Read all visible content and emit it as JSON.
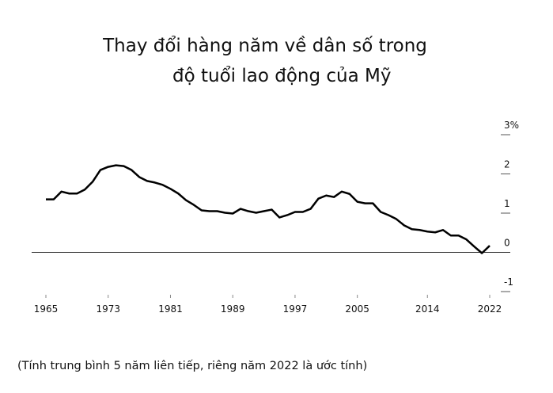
{
  "chart_data": {
    "type": "line",
    "title": [
      "Thay đổi hàng năm về dân số trong",
      "độ tuổi lao động của Mỹ"
    ],
    "note": "(Tính trung bình 5 năm liên tiếp, riêng năm 2022 là ước tính)",
    "x": [
      1965,
      1966,
      1967,
      1968,
      1969,
      1970,
      1971,
      1972,
      1973,
      1974,
      1975,
      1976,
      1977,
      1978,
      1979,
      1980,
      1981,
      1982,
      1983,
      1984,
      1985,
      1986,
      1987,
      1988,
      1989,
      1990,
      1991,
      1992,
      1993,
      1994,
      1995,
      1996,
      1997,
      1998,
      1999,
      2000,
      2001,
      2002,
      2003,
      2004,
      2005,
      2006,
      2007,
      2008,
      2009,
      2010,
      2011,
      2012,
      2013,
      2014,
      2015,
      2016,
      2017,
      2018,
      2019,
      2020,
      2021,
      2022
    ],
    "series": [
      {
        "color": "#000000",
        "values": [
          1.35,
          1.35,
          1.55,
          1.5,
          1.5,
          1.6,
          1.8,
          2.1,
          2.18,
          2.22,
          2.2,
          2.1,
          1.92,
          1.82,
          1.78,
          1.72,
          1.62,
          1.5,
          1.33,
          1.21,
          1.07,
          1.05,
          1.05,
          1.01,
          0.99,
          1.11,
          1.05,
          1.01,
          1.05,
          1.09,
          0.89,
          0.95,
          1.03,
          1.03,
          1.11,
          1.37,
          1.45,
          1.41,
          1.55,
          1.49,
          1.29,
          1.25,
          1.25,
          1.03,
          0.95,
          0.85,
          0.69,
          0.59,
          0.57,
          0.53,
          0.51,
          0.57,
          0.43,
          0.43,
          0.33,
          0.15,
          -0.02,
          0.17
        ]
      }
    ],
    "xlim": [
      1965,
      2022
    ],
    "xticks": [
      1965,
      1973,
      1981,
      1989,
      1997,
      2005,
      2014,
      2022
    ],
    "ylim": [
      -1,
      3
    ],
    "yticks": [
      {
        "value": 3,
        "label": "3%"
      },
      2,
      1,
      0,
      -1
    ]
  }
}
